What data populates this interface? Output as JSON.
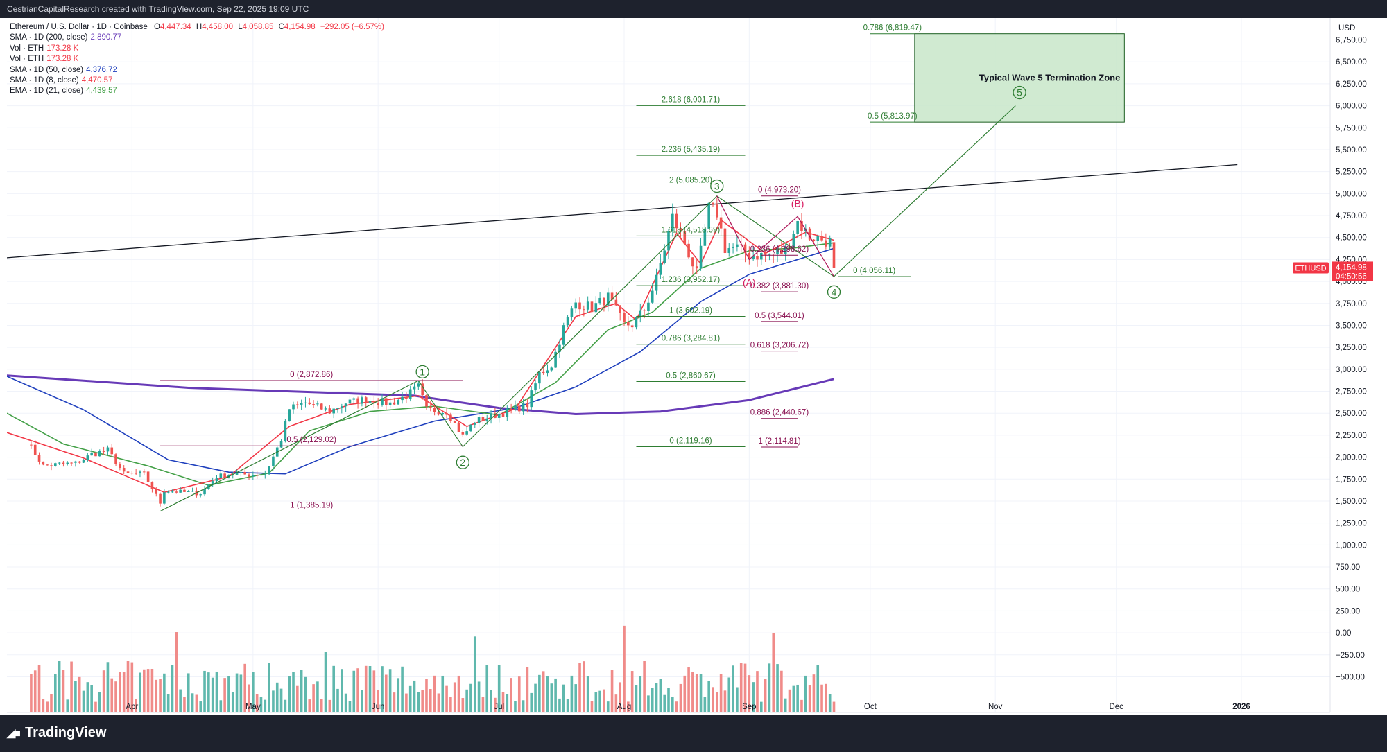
{
  "header": {
    "caption": "CestrianCapitalResearch created with TradingView.com, Sep 22, 2025 19:09 UTC"
  },
  "footer": {
    "brand": "TradingView",
    "logo_icon": "tradingview-logo-icon"
  },
  "legend": {
    "symbol": "Ethereum / U.S. Dollar · 1D · Coinbase",
    "ohlc": {
      "open_label": "O",
      "open": "4,447.34",
      "high_label": "H",
      "high": "4,458.00",
      "low_label": "L",
      "low": "4,058.85",
      "close_label": "C",
      "close": "4,154.98",
      "change": "−292.05 (−6.57%)"
    },
    "indicators": [
      {
        "label": "SMA · 1D (200, close)",
        "value": "2,890.77",
        "color": "#673ab7"
      },
      {
        "label": "Vol · ETH",
        "value": "173.28 K",
        "color": "#f23645"
      },
      {
        "label": "Vol · ETH",
        "value": "173.28 K",
        "color": "#f23645"
      },
      {
        "label": "SMA · 1D (50, close)",
        "value": "4,376.72",
        "color": "#1e3fbd"
      },
      {
        "label": "SMA · 1D (8, close)",
        "value": "4,470.57",
        "color": "#f23645"
      },
      {
        "label": "EMA · 1D (21, close)",
        "value": "4,439.57",
        "color": "#43a047"
      }
    ]
  },
  "chart_data": {
    "type": "candlestick",
    "currency_label": "USD",
    "ticker_tag": "ETHUSD",
    "last_price": "4,154.98",
    "countdown": "04:50:56",
    "price_scale": {
      "ticks": [
        "6,750.00",
        "6,500.00",
        "6,250.00",
        "6,000.00",
        "5,750.00",
        "5,500.00",
        "5,250.00",
        "5,000.00",
        "4,750.00",
        "4,500.00",
        "4,250.00",
        "4,000.00",
        "3,750.00",
        "3,500.00",
        "3,250.00",
        "3,000.00",
        "2,750.00",
        "2,500.00",
        "2,250.00",
        "2,000.00",
        "1,750.00",
        "1,500.00",
        "1,250.00",
        "1,000.00",
        "750.00",
        "500.00",
        "250.00",
        "0.00",
        "−250.00",
        "−500.00"
      ],
      "tick_values": [
        6750,
        6500,
        6250,
        6000,
        5750,
        5500,
        5250,
        5000,
        4750,
        4500,
        4250,
        4000,
        3750,
        3500,
        3250,
        3000,
        2750,
        2500,
        2250,
        2000,
        1750,
        1500,
        1250,
        1000,
        750,
        500,
        250,
        0,
        -250,
        -500
      ]
    },
    "time_axis": [
      "Apr",
      "May",
      "Jun",
      "Jul",
      "Aug",
      "Sep",
      "Oct",
      "Nov",
      "Dec",
      "2026"
    ],
    "close_path": [
      [
        "2025-03-06",
        2180
      ],
      [
        "2025-03-10",
        1900
      ],
      [
        "2025-03-14",
        1920
      ],
      [
        "2025-03-18",
        1930
      ],
      [
        "2025-03-22",
        2030
      ],
      [
        "2025-03-26",
        2080
      ],
      [
        "2025-03-30",
        1810
      ],
      [
        "2025-04-04",
        1810
      ],
      [
        "2025-04-08",
        1480
      ],
      [
        "2025-04-09",
        1620
      ],
      [
        "2025-04-14",
        1600
      ],
      [
        "2025-04-18",
        1590
      ],
      [
        "2025-04-22",
        1780
      ],
      [
        "2025-04-26",
        1810
      ],
      [
        "2025-04-30",
        1800
      ],
      [
        "2025-05-04",
        1810
      ],
      [
        "2025-05-08",
        2200
      ],
      [
        "2025-05-10",
        2550
      ],
      [
        "2025-05-14",
        2620
      ],
      [
        "2025-05-20",
        2520
      ],
      [
        "2025-05-24",
        2620
      ],
      [
        "2025-05-29",
        2660
      ],
      [
        "2025-06-04",
        2610
      ],
      [
        "2025-06-08",
        2700
      ],
      [
        "2025-06-11",
        2800
      ],
      [
        "2025-06-13",
        2540
      ],
      [
        "2025-06-18",
        2520
      ],
      [
        "2025-06-22",
        2240
      ],
      [
        "2025-06-25",
        2410
      ],
      [
        "2025-06-30",
        2480
      ],
      [
        "2025-07-04",
        2530
      ],
      [
        "2025-07-08",
        2600
      ],
      [
        "2025-07-11",
        2950
      ],
      [
        "2025-07-14",
        3050
      ],
      [
        "2025-07-17",
        3470
      ],
      [
        "2025-07-20",
        3760
      ],
      [
        "2025-07-24",
        3700
      ],
      [
        "2025-07-28",
        3820
      ],
      [
        "2025-08-01",
        3510
      ],
      [
        "2025-08-03",
        3510
      ],
      [
        "2025-08-06",
        3680
      ],
      [
        "2025-08-09",
        4020
      ],
      [
        "2025-08-13",
        4730
      ],
      [
        "2025-08-16",
        4440
      ],
      [
        "2025-08-19",
        4080
      ],
      [
        "2025-08-22",
        4830
      ],
      [
        "2025-08-24",
        4780
      ],
      [
        "2025-08-26",
        4380
      ],
      [
        "2025-08-29",
        4380
      ],
      [
        "2025-09-01",
        4300
      ],
      [
        "2025-09-05",
        4300
      ],
      [
        "2025-09-08",
        4320
      ],
      [
        "2025-09-10",
        4350
      ],
      [
        "2025-09-13",
        4680
      ],
      [
        "2025-09-16",
        4510
      ],
      [
        "2025-09-19",
        4480
      ],
      [
        "2025-09-21",
        4447
      ],
      [
        "2025-09-22",
        4154.98
      ]
    ],
    "moving_averages": [
      {
        "name": "SMA 200",
        "color": "#673ab7",
        "points": [
          [
            "2025-03-01",
            2930
          ],
          [
            "2025-04-15",
            2790
          ],
          [
            "2025-06-10",
            2700
          ],
          [
            "2025-07-01",
            2560
          ],
          [
            "2025-07-20",
            2490
          ],
          [
            "2025-08-10",
            2520
          ],
          [
            "2025-09-01",
            2650
          ],
          [
            "2025-09-22",
            2890
          ]
        ]
      },
      {
        "name": "SMA 50",
        "color": "#1e3fbd",
        "points": [
          [
            "2025-03-01",
            2920
          ],
          [
            "2025-03-20",
            2540
          ],
          [
            "2025-04-10",
            1970
          ],
          [
            "2025-04-25",
            1830
          ],
          [
            "2025-05-09",
            1810
          ],
          [
            "2025-05-25",
            2120
          ],
          [
            "2025-06-15",
            2410
          ],
          [
            "2025-07-05",
            2560
          ],
          [
            "2025-07-20",
            2800
          ],
          [
            "2025-08-05",
            3200
          ],
          [
            "2025-08-20",
            3770
          ],
          [
            "2025-09-01",
            4080
          ],
          [
            "2025-09-22",
            4377
          ]
        ]
      },
      {
        "name": "EMA 21",
        "color": "#43a047",
        "points": [
          [
            "2025-03-01",
            2500
          ],
          [
            "2025-03-15",
            2150
          ],
          [
            "2025-04-05",
            1900
          ],
          [
            "2025-04-20",
            1680
          ],
          [
            "2025-05-05",
            1820
          ],
          [
            "2025-05-15",
            2300
          ],
          [
            "2025-05-30",
            2520
          ],
          [
            "2025-06-15",
            2580
          ],
          [
            "2025-07-01",
            2480
          ],
          [
            "2025-07-15",
            2850
          ],
          [
            "2025-07-28",
            3450
          ],
          [
            "2025-08-08",
            3650
          ],
          [
            "2025-08-20",
            4150
          ],
          [
            "2025-09-01",
            4350
          ],
          [
            "2025-09-12",
            4380
          ],
          [
            "2025-09-22",
            4440
          ]
        ]
      },
      {
        "name": "SMA 8",
        "color": "#f23645",
        "points": [
          [
            "2025-03-01",
            2280
          ],
          [
            "2025-03-20",
            1990
          ],
          [
            "2025-04-09",
            1600
          ],
          [
            "2025-04-25",
            1780
          ],
          [
            "2025-05-10",
            2350
          ],
          [
            "2025-05-25",
            2600
          ],
          [
            "2025-06-11",
            2700
          ],
          [
            "2025-06-23",
            2350
          ],
          [
            "2025-07-05",
            2550
          ],
          [
            "2025-07-20",
            3600
          ],
          [
            "2025-07-30",
            3750
          ],
          [
            "2025-08-04",
            3560
          ],
          [
            "2025-08-14",
            4550
          ],
          [
            "2025-08-20",
            4200
          ],
          [
            "2025-08-25",
            4700
          ],
          [
            "2025-09-05",
            4320
          ],
          [
            "2025-09-15",
            4560
          ],
          [
            "2025-09-22",
            4470
          ]
        ]
      }
    ],
    "trendline": [
      [
        "2025-03-01",
        4270
      ],
      [
        "2025-12-31",
        5330
      ]
    ],
    "wave_path": [
      [
        "2025-04-08",
        1385
      ],
      [
        "2025-06-11",
        2872
      ],
      [
        "2025-06-22",
        2119
      ],
      [
        "2025-08-24",
        4973
      ],
      [
        "2025-09-22",
        4056
      ],
      [
        "2025-11-06",
        6000
      ]
    ],
    "corrective_path": [
      [
        "2025-08-24",
        4973
      ],
      [
        "2025-09-01",
        4250
      ],
      [
        "2025-09-13",
        4740
      ],
      [
        "2025-09-22",
        4056
      ]
    ],
    "target_zone": {
      "label": "Typical Wave 5 Termination Zone",
      "x0": "2025-10-12",
      "x1": "2025-12-03",
      "y0": 5813.97,
      "y1": 6819.47
    },
    "wave_labels": [
      {
        "text": "1",
        "date": "2025-06-12",
        "price": 2972,
        "color": "#2e7d32"
      },
      {
        "text": "2",
        "date": "2025-06-22",
        "price": 1940,
        "color": "#2e7d32"
      },
      {
        "text": "3",
        "date": "2025-08-24",
        "price": 5085,
        "color": "#2e7d32"
      },
      {
        "text": "4",
        "date": "2025-09-22",
        "price": 3880,
        "color": "#2e7d32"
      },
      {
        "text": "5",
        "date": "2025-11-07",
        "price": 6150,
        "color": "#2e7d32"
      },
      {
        "text": "(A)",
        "date": "2025-09-01",
        "price": 3990,
        "color": "#d81b60"
      },
      {
        "text": "(B)",
        "date": "2025-09-13",
        "price": 4890,
        "color": "#d81b60"
      }
    ],
    "fib_levels": [
      {
        "label": "0 (2,872.86)",
        "price": 2872.86,
        "x0": "2025-04-08",
        "x1": "2025-06-22",
        "color": "#880e4f"
      },
      {
        "label": "0.5 (2,129.02)",
        "price": 2129.02,
        "x0": "2025-04-08",
        "x1": "2025-06-22",
        "color": "#880e4f"
      },
      {
        "label": "1 (1,385.19)",
        "price": 1385.19,
        "x0": "2025-04-08",
        "x1": "2025-06-22",
        "color": "#880e4f"
      },
      {
        "label": "2.618 (6,001.71)",
        "price": 6001.71,
        "x0": "2025-08-04",
        "x1": "2025-08-31",
        "color": "#2e7d32"
      },
      {
        "label": "2.236 (5,435.19)",
        "price": 5435.19,
        "x0": "2025-08-04",
        "x1": "2025-08-31",
        "color": "#2e7d32"
      },
      {
        "label": "2 (5,085.20)",
        "price": 5085.2,
        "x0": "2025-08-04",
        "x1": "2025-08-31",
        "color": "#2e7d32"
      },
      {
        "label": "1.618 (4,518.69)",
        "price": 4518.69,
        "x0": "2025-08-04",
        "x1": "2025-08-31",
        "color": "#2e7d32"
      },
      {
        "label": "1.236 (3,952.17)",
        "price": 3952.17,
        "x0": "2025-08-04",
        "x1": "2025-08-31",
        "color": "#2e7d32"
      },
      {
        "label": "1 (3,602.19)",
        "price": 3602.19,
        "x0": "2025-08-04",
        "x1": "2025-08-31",
        "color": "#2e7d32"
      },
      {
        "label": "0.786 (3,284.81)",
        "price": 3284.81,
        "x0": "2025-08-04",
        "x1": "2025-08-31",
        "color": "#2e7d32"
      },
      {
        "label": "0.5 (2,860.67)",
        "price": 2860.67,
        "x0": "2025-08-04",
        "x1": "2025-08-31",
        "color": "#2e7d32"
      },
      {
        "label": "0 (2,119.16)",
        "price": 2119.16,
        "x0": "2025-08-04",
        "x1": "2025-08-31",
        "color": "#2e7d32"
      },
      {
        "label": "0 (4,973.20)",
        "price": 4973.2,
        "x0": "2025-09-04",
        "x1": "2025-09-13",
        "color": "#880e4f"
      },
      {
        "label": "0.236 (4,298.62)",
        "price": 4298.62,
        "x0": "2025-09-04",
        "x1": "2025-09-13",
        "color": "#880e4f"
      },
      {
        "label": "0.382 (3,881.30)",
        "price": 3881.3,
        "x0": "2025-09-04",
        "x1": "2025-09-13",
        "color": "#880e4f"
      },
      {
        "label": "0.5 (3,544.01)",
        "price": 3544.01,
        "x0": "2025-09-04",
        "x1": "2025-09-13",
        "color": "#880e4f"
      },
      {
        "label": "0.618 (3,206.72)",
        "price": 3206.72,
        "x0": "2025-09-04",
        "x1": "2025-09-13",
        "color": "#880e4f"
      },
      {
        "label": "0.886 (2,440.67)",
        "price": 2440.67,
        "x0": "2025-09-04",
        "x1": "2025-09-13",
        "color": "#880e4f"
      },
      {
        "label": "1 (2,114.81)",
        "price": 2114.81,
        "x0": "2025-09-04",
        "x1": "2025-09-13",
        "color": "#880e4f"
      },
      {
        "label": "0 (4,056.11)",
        "price": 4056.11,
        "x0": "2025-09-23",
        "x1": "2025-10-11",
        "color": "#2e7d32"
      },
      {
        "label": "0.5 (5,813.97)",
        "price": 5813.97,
        "x0": "2025-10-01",
        "x1": "2025-10-12",
        "color": "#2e7d32"
      },
      {
        "label": "0.786 (6,819.47)",
        "price": 6819.47,
        "x0": "2025-10-01",
        "x1": "2025-10-12",
        "color": "#2e7d32"
      }
    ],
    "colors": {
      "up": "#26a69a",
      "down": "#ef5350",
      "up_volume": "#5fb8ad",
      "down_volume": "#f08b89",
      "zone_fill": "#c8e6c9"
    }
  }
}
